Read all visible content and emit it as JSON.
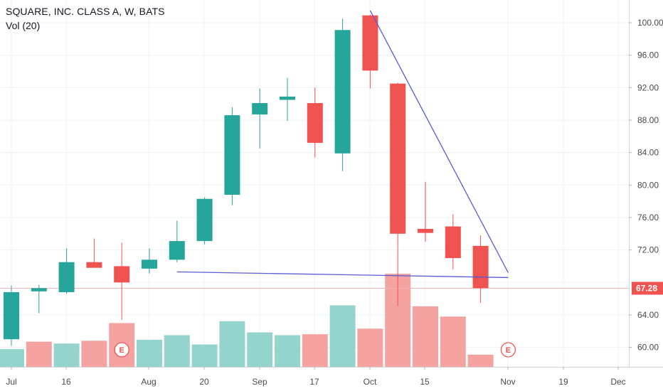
{
  "legend": {
    "title": "SQUARE, INC. CLASS A, W, BATS",
    "volume_label": "Vol (20)"
  },
  "colors": {
    "up": "#26a69a",
    "down": "#ef5350",
    "vol_up": "#95d4cc",
    "vol_down": "#f5a3a1",
    "trendline": "#5b5bd6",
    "price_line": "#f7b3b3",
    "grid": "#eef0f3",
    "price_tag": "#ef5350"
  },
  "chart_data": {
    "type": "candlestick",
    "title": "SQUARE, INC. CLASS A, W, BATS",
    "interval": "W",
    "ylim": [
      57.6,
      102.8
    ],
    "y_ticks": [
      60,
      64,
      68,
      72,
      76,
      80,
      84,
      88,
      92,
      96,
      100
    ],
    "y_tick_labels": [
      "60.00",
      "64.00",
      "",
      "72.00",
      "76.00",
      "80.00",
      "84.00",
      "88.00",
      "92.00",
      "96.00",
      "100.00"
    ],
    "x_tick_labels": [
      "Jul",
      "16",
      "Aug",
      "20",
      "Sep",
      "17",
      "Oct",
      "15",
      "Nov",
      "19",
      "Dec"
    ],
    "candles": [
      {
        "o": 61.0,
        "h": 67.6,
        "l": 60.2,
        "c": 66.8
      },
      {
        "o": 66.9,
        "h": 67.7,
        "l": 64.2,
        "c": 67.3
      },
      {
        "o": 66.8,
        "h": 72.2,
        "l": 66.6,
        "c": 70.5
      },
      {
        "o": 70.5,
        "h": 73.4,
        "l": 69.8,
        "c": 69.8
      },
      {
        "o": 70.0,
        "h": 72.9,
        "l": 63.4,
        "c": 68.0
      },
      {
        "o": 69.7,
        "h": 72.2,
        "l": 69.1,
        "c": 70.8
      },
      {
        "o": 70.8,
        "h": 75.6,
        "l": 70.5,
        "c": 73.1
      },
      {
        "o": 73.1,
        "h": 78.5,
        "l": 72.7,
        "c": 78.3
      },
      {
        "o": 78.8,
        "h": 89.6,
        "l": 77.5,
        "c": 88.6
      },
      {
        "o": 88.7,
        "h": 91.9,
        "l": 84.5,
        "c": 90.1
      },
      {
        "o": 90.5,
        "h": 93.2,
        "l": 87.9,
        "c": 90.9
      },
      {
        "o": 90.1,
        "h": 92.0,
        "l": 83.4,
        "c": 85.2
      },
      {
        "o": 83.9,
        "h": 100.5,
        "l": 81.7,
        "c": 99.1
      },
      {
        "o": 100.9,
        "h": 101.0,
        "l": 91.9,
        "c": 94.1
      },
      {
        "o": 92.5,
        "h": 92.6,
        "l": 65.1,
        "c": 74.0
      },
      {
        "o": 74.6,
        "h": 80.4,
        "l": 73.0,
        "c": 74.1
      },
      {
        "o": 74.9,
        "h": 76.4,
        "l": 69.6,
        "c": 71.0
      },
      {
        "o": 72.5,
        "h": 73.8,
        "l": 65.5,
        "c": 67.3
      }
    ],
    "volume": [
      {
        "v": 0.19,
        "dir": "up"
      },
      {
        "v": 0.27,
        "dir": "down"
      },
      {
        "v": 0.25,
        "dir": "up"
      },
      {
        "v": 0.28,
        "dir": "down"
      },
      {
        "v": 0.47,
        "dir": "down"
      },
      {
        "v": 0.29,
        "dir": "up"
      },
      {
        "v": 0.34,
        "dir": "up"
      },
      {
        "v": 0.24,
        "dir": "up"
      },
      {
        "v": 0.49,
        "dir": "up"
      },
      {
        "v": 0.37,
        "dir": "up"
      },
      {
        "v": 0.34,
        "dir": "up"
      },
      {
        "v": 0.35,
        "dir": "down"
      },
      {
        "v": 0.66,
        "dir": "up"
      },
      {
        "v": 0.41,
        "dir": "down"
      },
      {
        "v": 1.0,
        "dir": "down"
      },
      {
        "v": 0.65,
        "dir": "down"
      },
      {
        "v": 0.54,
        "dir": "down"
      },
      {
        "v": 0.13,
        "dir": "down"
      }
    ],
    "trendlines": [
      {
        "from": {
          "bar": 13.0,
          "price": 101.5
        },
        "to": {
          "bar": 18.0,
          "price": 69.2
        }
      },
      {
        "from": {
          "bar": 6.0,
          "price": 69.3
        },
        "to": {
          "bar": 18.0,
          "price": 68.6
        }
      }
    ],
    "last_price": 67.28,
    "last_price_label": "67.28",
    "earnings_markers": [
      {
        "bar": 4,
        "label": "E"
      },
      {
        "bar": 18,
        "label": "E"
      }
    ]
  }
}
